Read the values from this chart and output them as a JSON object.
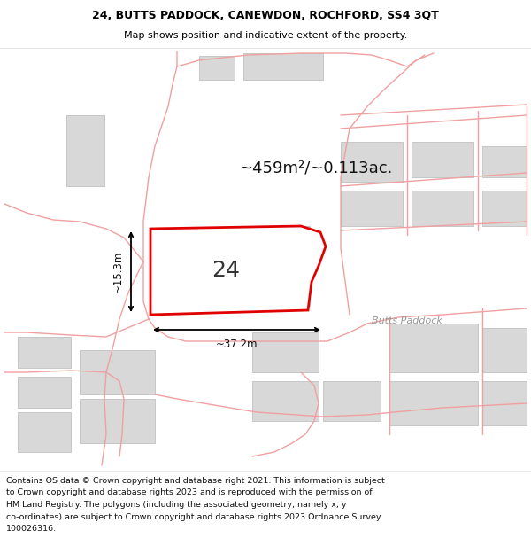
{
  "title": "24, BUTTS PADDOCK, CANEWDON, ROCHFORD, SS4 3QT",
  "subtitle": "Map shows position and indicative extent of the property.",
  "footer_lines": [
    "Contains OS data © Crown copyright and database right 2021. This information is subject",
    "to Crown copyright and database rights 2023 and is reproduced with the permission of",
    "HM Land Registry. The polygons (including the associated geometry, namely x, y",
    "co-ordinates) are subject to Crown copyright and database rights 2023 Ordnance Survey",
    "100026316."
  ],
  "area_label": "~459m²/~0.113ac.",
  "width_label": "~37.2m",
  "height_label": "~15.3m",
  "number_label": "24",
  "street_label": "Butts Paddock",
  "map_bg": "#ffffff",
  "building_fill": "#d8d8d8",
  "building_edge": "#c0c0c0",
  "road_color": "#f0a0a0",
  "highlight_color": "#e00000",
  "highlight_fill": "#ffffff",
  "dim_line_color": "#000000",
  "title_fontsize": 9,
  "subtitle_fontsize": 8,
  "footer_fontsize": 6.8,
  "area_fontsize": 13,
  "number_fontsize": 18,
  "dim_fontsize": 8.5,
  "street_fontsize": 8
}
